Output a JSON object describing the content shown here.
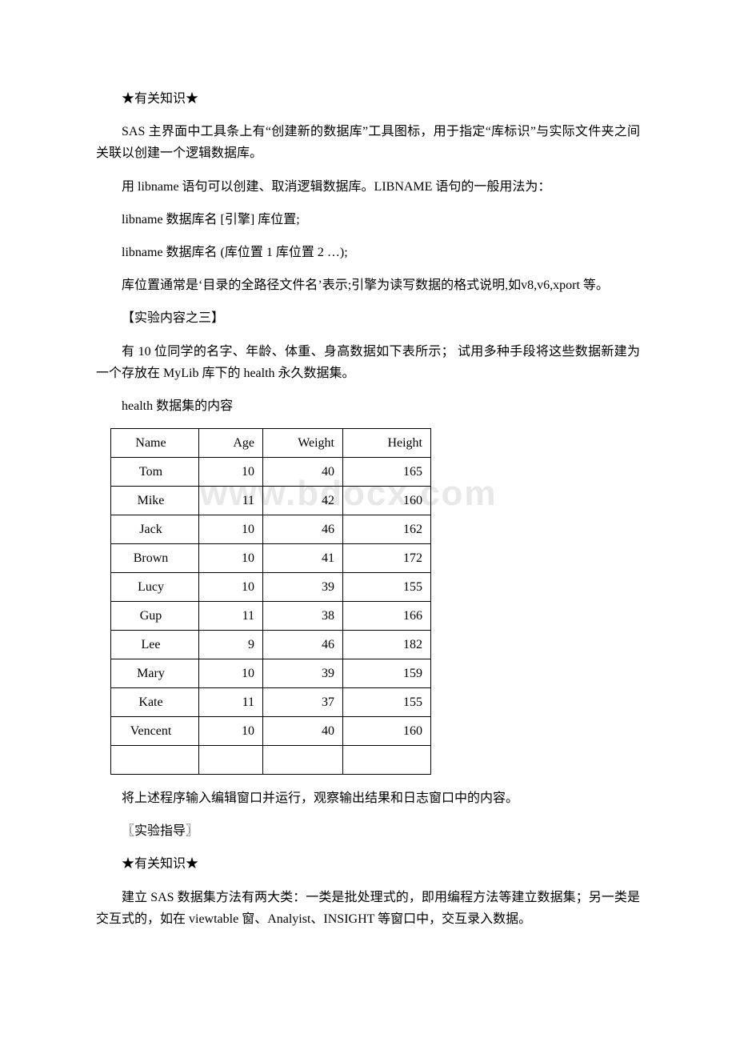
{
  "watermark": {
    "text": "www.bdocx.com"
  },
  "paragraphs": {
    "p1": "★有关知识★",
    "p2_a": "SAS 主界面中工具条上有",
    "p2_q1": "“",
    "p2_b": "创建新的数据库",
    "p2_q2": "”",
    "p2_c": "工具图标，用于指定",
    "p2_q3": "“",
    "p2_d": "库标识",
    "p2_q4": "”",
    "p2_e": "与实际文件夹之间关联以创建一个逻辑数据库。",
    "p3": "用 libname 语句可以创建、取消逻辑数据库。LIBNAME 语句的一般用法为：",
    "p4": "libname 数据库名 [引擎] 库位置;",
    "p5": "libname 数据库名 (库位置 1 库位置 2 …);",
    "p6_a": "库位置通常是",
    "p6_q1": "‘",
    "p6_b": "目录的全路径文件名",
    "p6_q2": "’",
    "p6_c": "表示;引擎为读写数据的格式说明,如v8,v6,xport 等。",
    "p7": "【实验内容之三】",
    "p8": "有 10 位同学的名字、年龄、体重、身高数据如下表所示； 试用多种手段将这些数据新建为一个存放在 MyLib 库下的 health 永久数据集。",
    "p9": "health 数据集的内容",
    "p10": "将上述程序输入编辑窗口并运行，观察输出结果和日志窗口中的内容。",
    "p11": "〖实验指导〗",
    "p12": "★有关知识★",
    "p13": "建立 SAS 数据集方法有两大类：一类是批处理式的，即用编程方法等建立数据集；另一类是交互式的，如在 viewtable 窗、Analyist、INSIGHT 等窗口中，交互录入数据。"
  },
  "table": {
    "columns": [
      "Name",
      "Age",
      "Weight",
      "Height"
    ],
    "rows": [
      [
        "Tom",
        "10",
        "40",
        "165"
      ],
      [
        "Mike",
        "11",
        "42",
        "160"
      ],
      [
        "Jack",
        "10",
        "46",
        "162"
      ],
      [
        "Brown",
        "10",
        "41",
        "172"
      ],
      [
        "Lucy",
        "10",
        "39",
        "155"
      ],
      [
        "Gup",
        "11",
        "38",
        "166"
      ],
      [
        "Lee",
        "9",
        "46",
        "182"
      ],
      [
        "Mary",
        "10",
        "39",
        "159"
      ],
      [
        "Kate",
        "11",
        "37",
        "155"
      ],
      [
        "Vencent",
        "10",
        "40",
        "160"
      ]
    ],
    "empty_row": [
      "",
      "",
      "",
      ""
    ]
  }
}
